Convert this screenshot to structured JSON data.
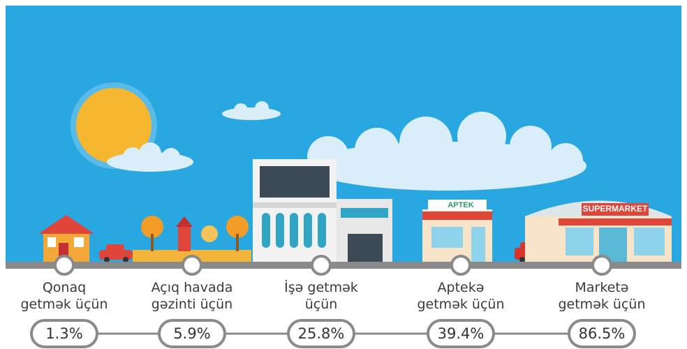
{
  "scene": {
    "pharmacy_sign": "APTEK",
    "market_sign": "SUPERMARKET"
  },
  "items": [
    {
      "label": [
        "Qonaq",
        "getmək üçün"
      ],
      "value": "1.3%"
    },
    {
      "label": [
        "Açıq havada",
        "gəzinti üçün"
      ],
      "value": "5.9%"
    },
    {
      "label": [
        "İşə getmək",
        "üçün"
      ],
      "value": "25.8%"
    },
    {
      "label": [
        "Aptekə",
        "getmək üçün"
      ],
      "value": "39.4%"
    },
    {
      "label": [
        "Marketə",
        "getmək üçün"
      ],
      "value": "86.5%"
    }
  ]
}
